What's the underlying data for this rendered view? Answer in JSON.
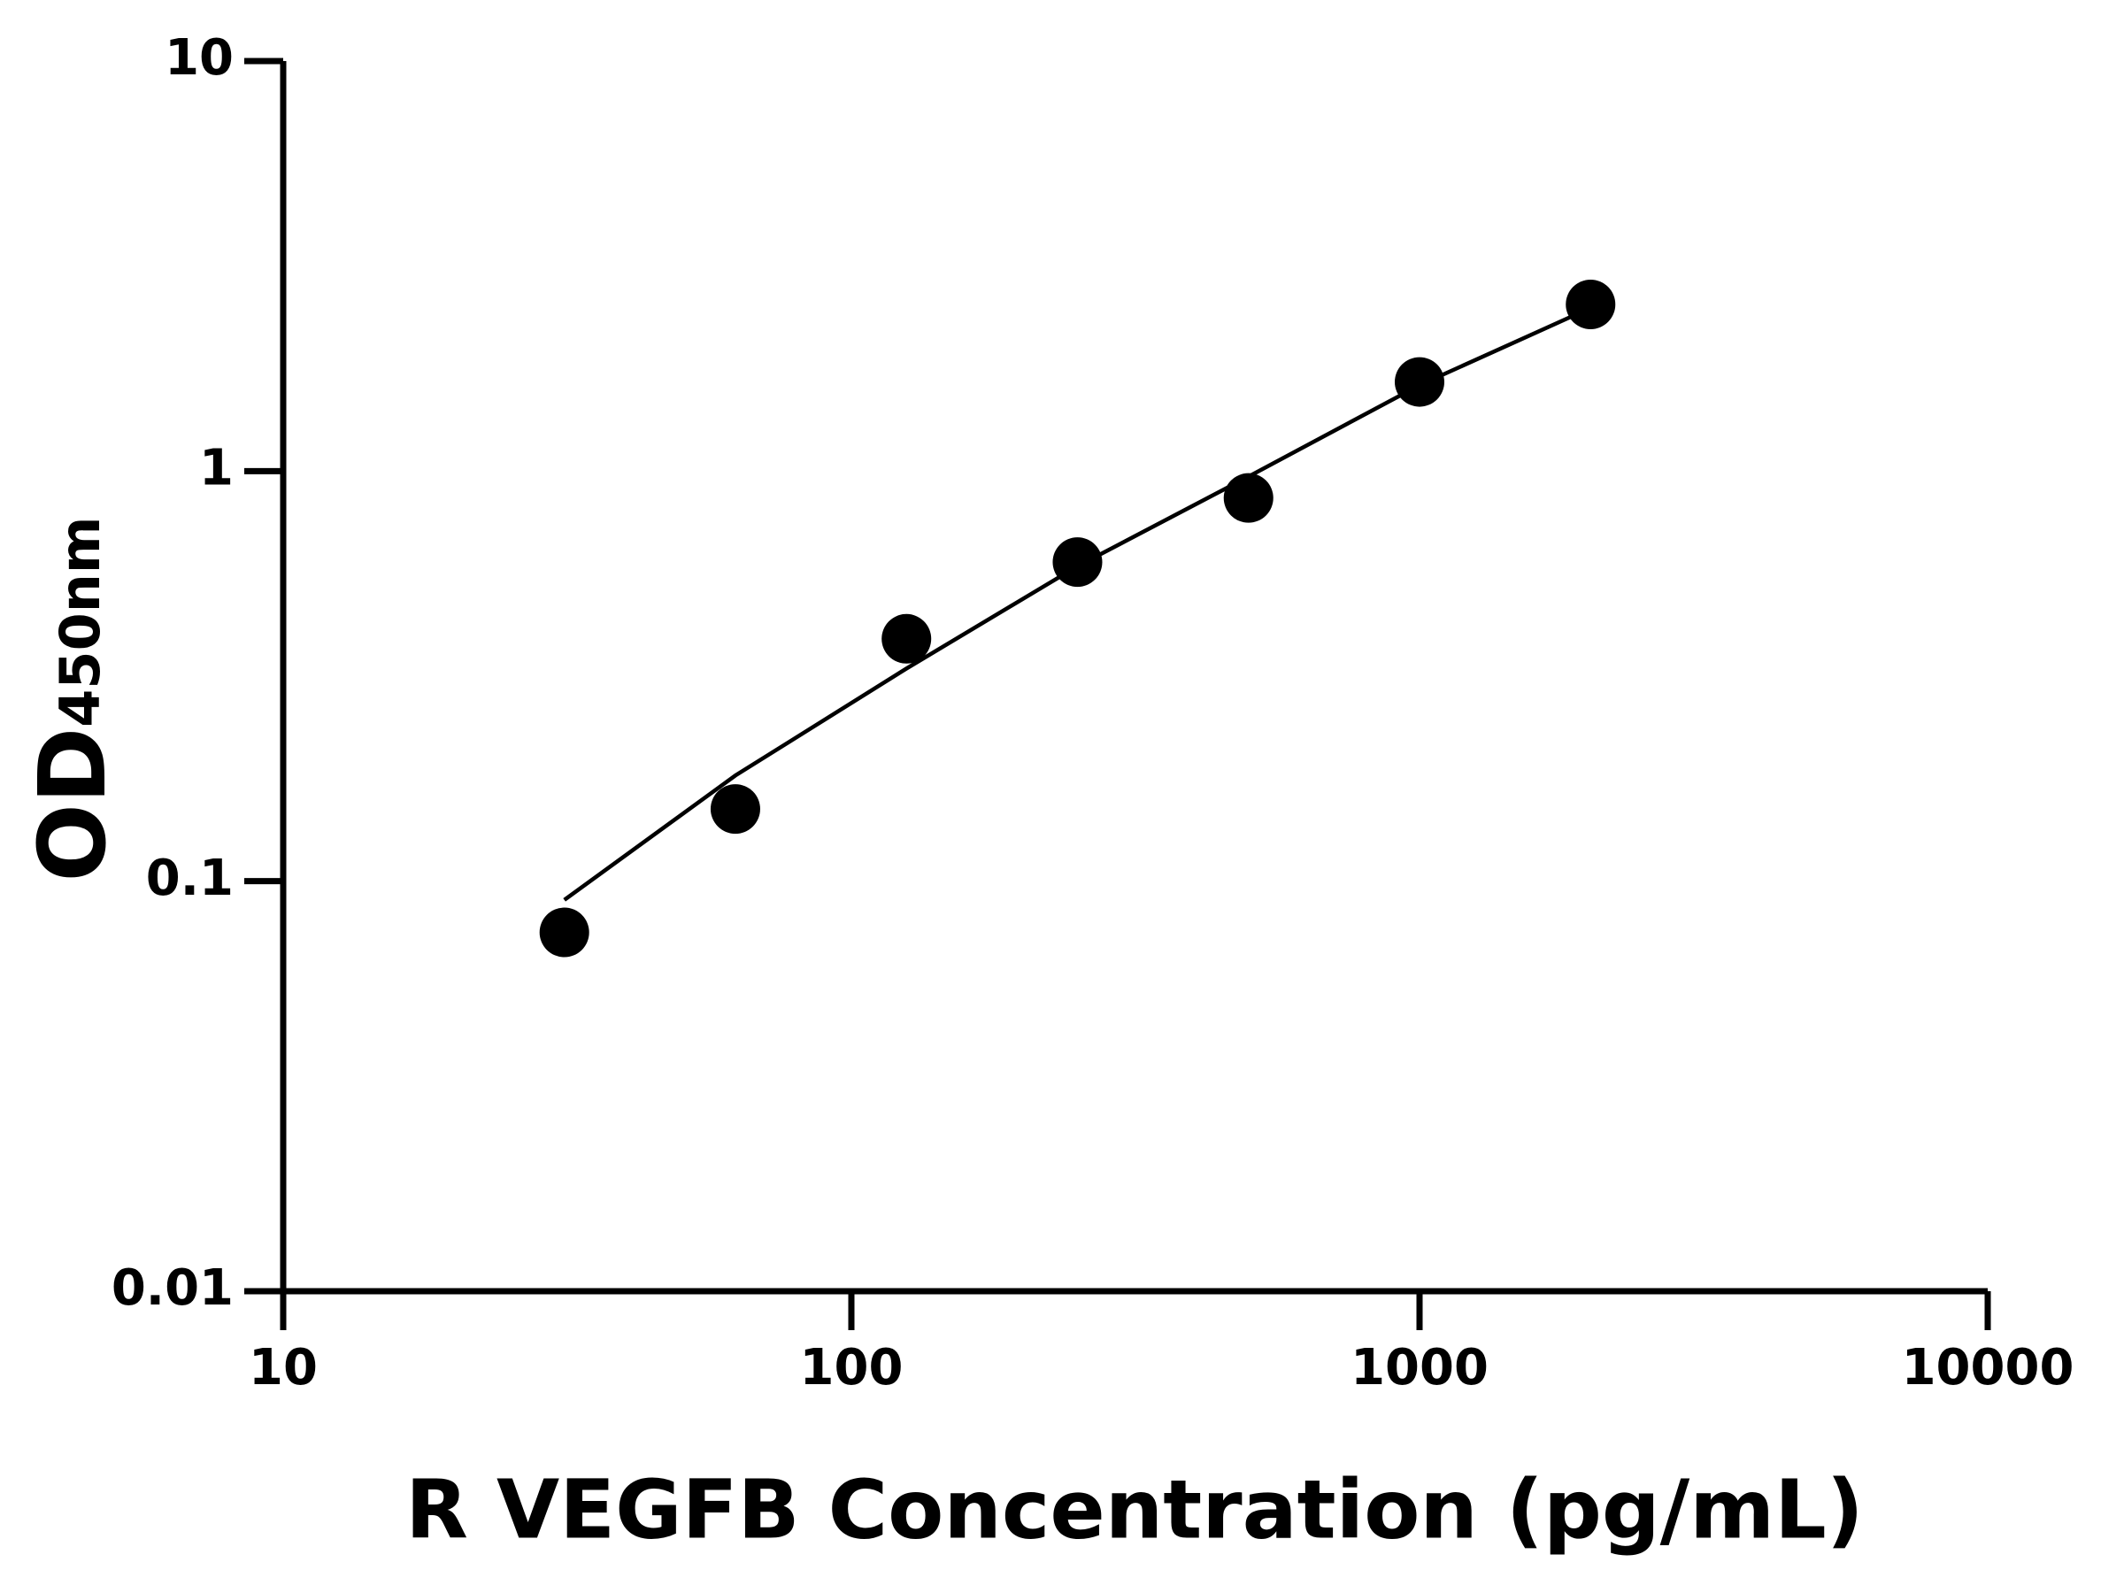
{
  "chart_data": {
    "type": "scatter",
    "x_label": "R VEGFB Concentration (pg/mL)",
    "y_label": "OD",
    "y_label_sub": "450nm",
    "x": [
      31.25,
      62.5,
      125,
      250,
      500,
      1000,
      2000
    ],
    "series": [
      {
        "values": [
          0.075,
          0.15,
          0.39,
          0.6,
          0.86,
          1.65,
          2.55
        ],
        "color": "#000000"
      }
    ],
    "fit": {
      "x": [
        31.25,
        62.5,
        125,
        250,
        500,
        1000,
        2000
      ],
      "y": [
        0.09,
        0.181,
        0.33,
        0.586,
        0.97,
        1.62,
        2.5
      ],
      "color": "#000000"
    },
    "xlim": [
      10,
      10000
    ],
    "ylim": [
      0.01,
      10
    ],
    "xticks": [
      10,
      100,
      1000,
      10000
    ],
    "yticks": [
      0.01,
      0.1,
      1,
      10
    ],
    "xscale": "log",
    "yscale": "log"
  }
}
